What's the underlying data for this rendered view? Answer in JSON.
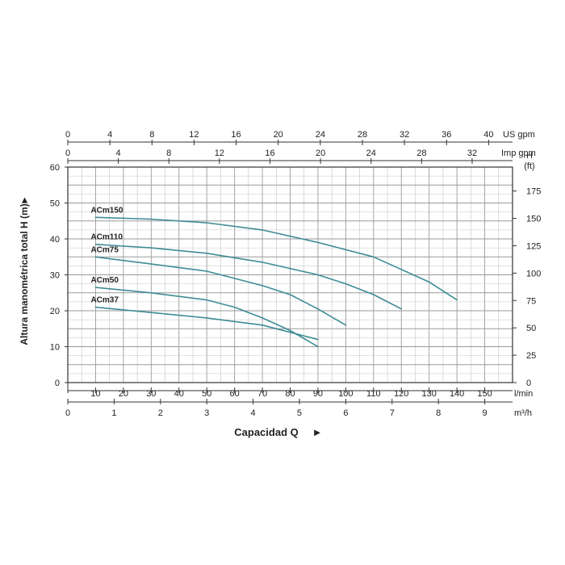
{
  "chart_data": {
    "type": "line",
    "ylabel": "Altura manométrica total H (m)",
    "ylabel_arrow": "►",
    "xlabel": "Capacidad Q",
    "xlabel_arrow": "►",
    "primary_x": {
      "unit": "l/min",
      "range": [
        0,
        160
      ],
      "ticks": [
        10,
        20,
        30,
        40,
        50,
        60,
        70,
        80,
        90,
        100,
        110,
        120,
        130,
        140,
        150
      ]
    },
    "y_left": {
      "unit": "m",
      "range": [
        0,
        60
      ],
      "ticks": [
        0,
        10,
        20,
        30,
        40,
        50,
        60
      ]
    },
    "y_right": {
      "unit_line1": "H",
      "unit_line2": "(ft)",
      "ticks": [
        0,
        25,
        50,
        75,
        100,
        125,
        150,
        175
      ],
      "ft_per_m": 3.281
    },
    "top_axis_us": {
      "unit": "US gpm",
      "ticks": [
        0,
        4,
        8,
        12,
        16,
        20,
        24,
        28,
        32,
        36,
        40
      ],
      "lpm_per_unit": 3.785
    },
    "top_axis_imp": {
      "unit": "Imp gpm",
      "ticks": [
        0,
        4,
        8,
        12,
        16,
        20,
        24,
        28,
        32
      ],
      "lpm_per_unit": 4.546
    },
    "bottom_axis_m3h": {
      "unit": "m³/h",
      "ticks": [
        0,
        1,
        2,
        3,
        4,
        5,
        6,
        7,
        8,
        9
      ],
      "lpm_per_unit": 16.667
    },
    "grid": true,
    "series": [
      {
        "name": "ACm150",
        "x": [
          10,
          30,
          50,
          70,
          90,
          110,
          130,
          140
        ],
        "y": [
          46,
          45.5,
          44.5,
          42.5,
          39,
          35,
          28,
          23
        ]
      },
      {
        "name": "ACm110",
        "x": [
          10,
          30,
          50,
          70,
          90,
          100,
          110,
          120
        ],
        "y": [
          38.5,
          37.5,
          36,
          33.5,
          30,
          27.5,
          24.5,
          20.5
        ]
      },
      {
        "name": "ACm75",
        "x": [
          10,
          30,
          50,
          70,
          80,
          90,
          100
        ],
        "y": [
          35,
          33,
          31,
          27,
          24.5,
          20.5,
          16
        ]
      },
      {
        "name": "ACm50",
        "x": [
          10,
          30,
          50,
          60,
          70,
          80,
          90
        ],
        "y": [
          26.5,
          25,
          23,
          21,
          18,
          14.5,
          10
        ]
      },
      {
        "name": "ACm37",
        "x": [
          10,
          30,
          50,
          70,
          80,
          90
        ],
        "y": [
          21,
          19.5,
          18,
          16,
          14,
          12
        ]
      }
    ]
  }
}
